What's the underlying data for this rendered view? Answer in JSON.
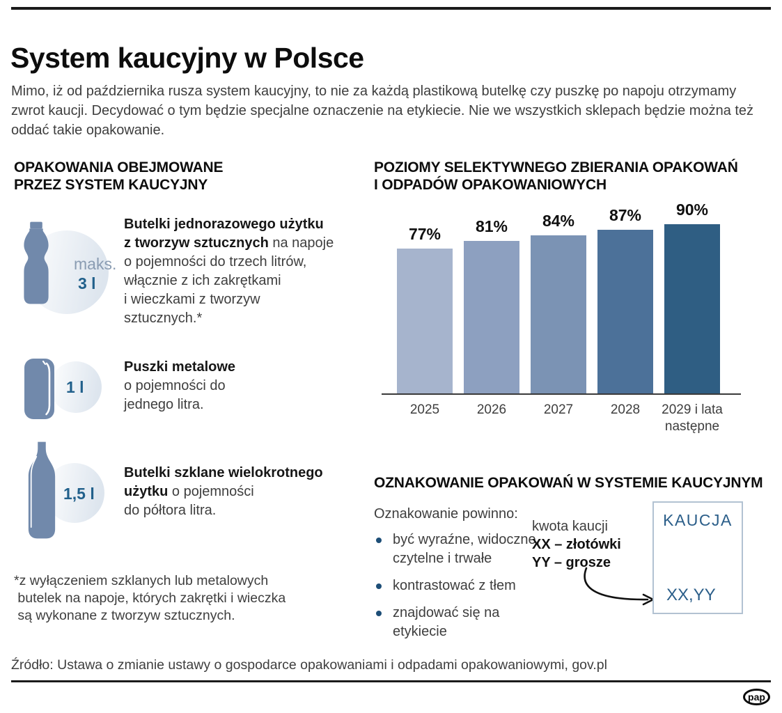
{
  "title": "System kaucyjny w Polsce",
  "intro": "Mimo, iż od października rusza system kaucyjny, to nie za każdą plastikową butelkę czy puszkę po napoju otrzymamy\nzwrot kaucji. Decydować o tym będzie specjalne oznaczenie na etykiecie. Nie we wszystkich sklepach będzie można też\noddać takie opakowanie.",
  "left_section": {
    "heading": "OPAKOWANIA OBEJMOWANE\nPRZEZ SYSTEM KAUCYJNY",
    "items": [
      {
        "icon": "plastic-bottle-icon",
        "badge_prefix": "maks.",
        "badge_value": "3 l",
        "title_bold": "Butelki jednorazowego użytku\nz tworzyw sztucznych",
        "desc": " na napoje\no pojemności do trzech litrów,\nwłącznie z ich zakrętkami\ni wieczkami z tworzyw\nsztucznych.*"
      },
      {
        "icon": "metal-can-icon",
        "badge_value": "1 l",
        "title_bold": "Puszki metalowe",
        "desc": "\no pojemności do\njednego litra."
      },
      {
        "icon": "glass-bottle-icon",
        "badge_value": "1,5 l",
        "title_bold": "Butelki szklane wielokrotnego\nużytku",
        "desc": " o pojemności\ndo półtora litra."
      }
    ],
    "footnote": "*z wyłączeniem szklanych lub metalowych\n butelek na napoje, których zakrętki i wieczka\n są wykonane z tworzyw sztucznych."
  },
  "chart_heading": "POZIOMY SELEKTYWNEGO ZBIERANIA OPAKOWAŃ\nI ODPADÓW OPAKOWANIOWYCH",
  "chart_data": {
    "type": "bar",
    "title": "POZIOMY SELEKTYWNEGO ZBIERANIA OPAKOWAŃ I ODPADÓW OPAKOWANIOWYCH",
    "categories": [
      "2025",
      "2026",
      "2027",
      "2028",
      "2029 i lata następne"
    ],
    "values": [
      77,
      81,
      84,
      87,
      90
    ],
    "labels": [
      "77%",
      "81%",
      "84%",
      "87%",
      "90%"
    ],
    "unit": "%",
    "bar_colors": [
      "#a6b4cd",
      "#8da0c0",
      "#7b93b4",
      "#4c7199",
      "#2f5e83"
    ],
    "ylim": [
      0,
      100
    ],
    "grid": false,
    "value_labels_position": "above",
    "axis_color": "#3a3a3a"
  },
  "marking_section": {
    "heading": "OZNAKOWANIE OPAKOWAŃ W SYSTEMIE KAUCYJNYM",
    "list_intro": "Oznakowanie powinno:",
    "bullets": [
      "być wyraźne, widoczne,\nczytelne i trwałe",
      "kontrastować z tłem",
      "znajdować się na etykiecie"
    ],
    "deposit_note": {
      "line": "kwota kaucji",
      "bold": "XX – złotówki\nYY – grosze"
    },
    "label_box": {
      "title": "KAUCJA",
      "value": "XX,YY"
    }
  },
  "source": "Źródło: Ustawa o zmianie ustawy o gospodarce opakowaniami i odpadami opakowaniowymi, gov.pl",
  "logo_text": "pap",
  "colors": {
    "icon_blue": "#7189ab",
    "halo_light": "#dde5ee",
    "badge_blue": "#21608b",
    "badge_gray_blue": "#8a9cb2",
    "bullet_blue": "#1d4e77",
    "kaucja_blue": "#2b5e89",
    "box_border": "#b2c2d2",
    "text_dark": "#0d0d0d",
    "text_body": "#3e3e3e",
    "rule_black": "#1a1a1a"
  }
}
